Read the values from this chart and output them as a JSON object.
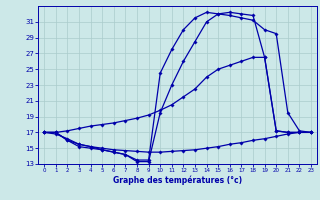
{
  "title": "Graphe des températures (°c)",
  "background_color": "#cce8e8",
  "grid_color": "#aacccc",
  "line_color": "#0000aa",
  "xlim": [
    -0.5,
    23.5
  ],
  "ylim": [
    13,
    33
  ],
  "yticks": [
    13,
    15,
    17,
    19,
    21,
    23,
    25,
    27,
    29,
    31
  ],
  "xticks": [
    0,
    1,
    2,
    3,
    4,
    5,
    6,
    7,
    8,
    9,
    10,
    11,
    12,
    13,
    14,
    15,
    16,
    17,
    18,
    19,
    20,
    21,
    22,
    23
  ],
  "curve1_x": [
    0,
    1,
    2,
    3,
    4,
    5,
    6,
    7,
    8,
    9,
    10,
    11,
    12,
    13,
    14,
    15,
    16,
    17,
    18,
    19,
    20,
    21,
    22,
    23
  ],
  "curve1_y": [
    17,
    17,
    16,
    15.5,
    15.2,
    14.8,
    14.5,
    14.2,
    13.5,
    13.5,
    24.5,
    27.5,
    30.0,
    31.5,
    32.2,
    32.0,
    31.8,
    31.5,
    31.2,
    30.0,
    29.5,
    19.5,
    17.2,
    17.0
  ],
  "curve2_x": [
    0,
    1,
    2,
    3,
    4,
    5,
    6,
    7,
    8,
    9,
    10,
    11,
    12,
    13,
    14,
    15,
    16,
    17,
    18,
    19,
    20,
    21,
    22,
    23
  ],
  "curve2_y": [
    17,
    17,
    16,
    15.2,
    15.0,
    14.8,
    14.5,
    14.2,
    13.3,
    13.3,
    19.5,
    23.0,
    26.0,
    28.5,
    31.0,
    32.0,
    32.2,
    32.0,
    31.8,
    26.5,
    17.2,
    17.0,
    17.0,
    17.0
  ],
  "curve3_x": [
    0,
    1,
    2,
    3,
    4,
    5,
    6,
    7,
    8,
    9,
    10,
    11,
    12,
    13,
    14,
    15,
    16,
    17,
    18,
    19,
    20,
    21,
    22,
    23
  ],
  "curve3_y": [
    17.0,
    16.8,
    16.2,
    15.5,
    15.2,
    15.0,
    14.8,
    14.7,
    14.6,
    14.5,
    14.5,
    14.6,
    14.7,
    14.8,
    15.0,
    15.2,
    15.5,
    15.7,
    16.0,
    16.2,
    16.5,
    16.8,
    17.0,
    17.0
  ],
  "curve4_x": [
    0,
    1,
    2,
    3,
    4,
    5,
    6,
    7,
    8,
    9,
    10,
    11,
    12,
    13,
    14,
    15,
    16,
    17,
    18,
    19,
    20,
    21,
    22,
    23
  ],
  "curve4_y": [
    17.0,
    17.0,
    17.2,
    17.5,
    17.8,
    18.0,
    18.2,
    18.5,
    18.8,
    19.2,
    19.8,
    20.5,
    21.5,
    22.5,
    24.0,
    25.0,
    25.5,
    26.0,
    26.5,
    26.5,
    17.2,
    17.0,
    17.0,
    17.0
  ]
}
